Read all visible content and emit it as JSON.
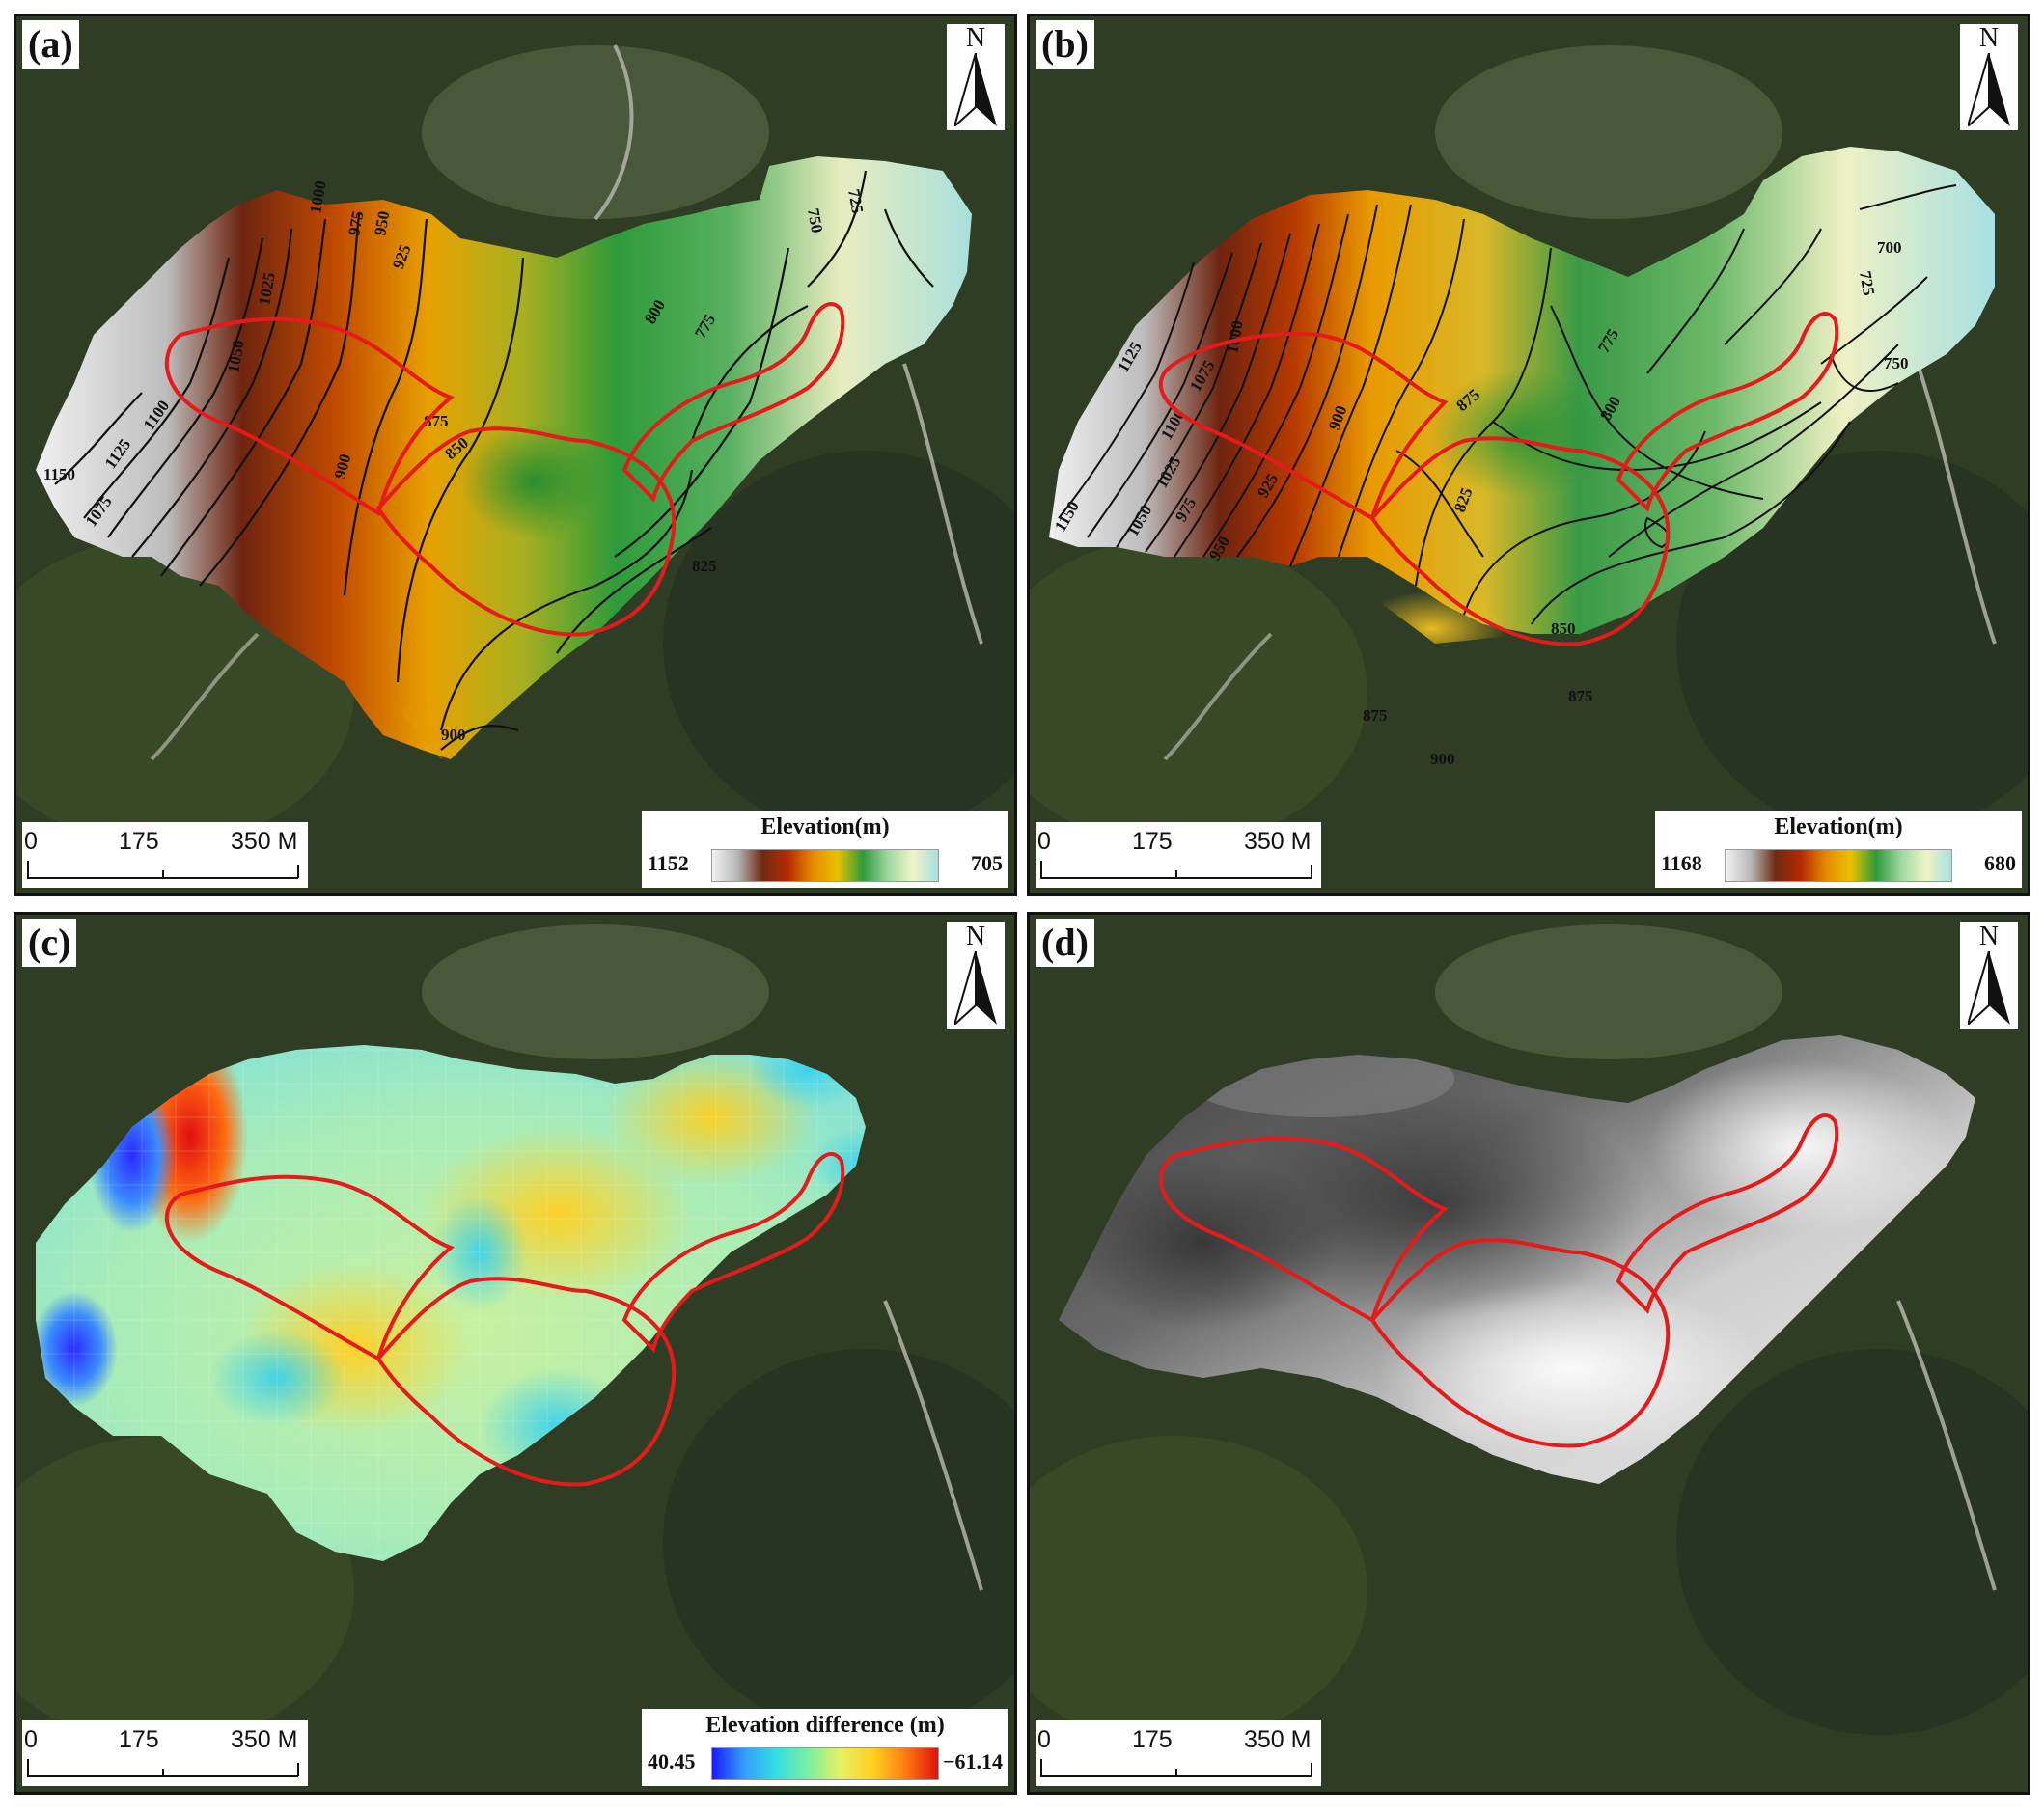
{
  "panels": [
    {
      "label": "(a)",
      "north": "N",
      "scale": {
        "ticks": [
          "0",
          "175",
          "350 M"
        ]
      },
      "legend": {
        "title": "Elevation(m)",
        "min_label": "1152",
        "max_label": "705",
        "colors": [
          "#f2f2f2",
          "#b8b8b8",
          "#6e2a12",
          "#b52a00",
          "#e58a00",
          "#e8c200",
          "#2e9a3a",
          "#9ed8a0",
          "#f0f4c8",
          "#a6e0e0"
        ]
      },
      "contours": [
        "1150",
        "1125",
        "1100",
        "1075",
        "1050",
        "1025",
        "1000",
        "975",
        "950",
        "925",
        "900",
        "875",
        "850",
        "825",
        "800",
        "775",
        "750",
        "725",
        "900"
      ],
      "surface": "elevation-coarse"
    },
    {
      "label": "(b)",
      "north": "N",
      "scale": {
        "ticks": [
          "0",
          "175",
          "350 M"
        ]
      },
      "legend": {
        "title": "Elevation(m)",
        "min_label": "1168",
        "max_label": "680",
        "colors": [
          "#f2f2f2",
          "#b8b8b8",
          "#6e2a12",
          "#b52a00",
          "#e58a00",
          "#e8c200",
          "#2e9a3a",
          "#9ed8a0",
          "#f0f4c8",
          "#a6e0e0"
        ]
      },
      "contours": [
        "1150",
        "1125",
        "1100",
        "1075",
        "1050",
        "1025",
        "1000",
        "975",
        "950",
        "925",
        "900",
        "875",
        "850",
        "825",
        "800",
        "775",
        "750",
        "725",
        "700",
        "875",
        "875",
        "900"
      ],
      "surface": "elevation-fine"
    },
    {
      "label": "(c)",
      "north": "N",
      "scale": {
        "ticks": [
          "0",
          "175",
          "350 M"
        ]
      },
      "legend": {
        "title": "Elevation difference (m)",
        "min_label": "40.45",
        "max_label": "−61.14",
        "colors": [
          "#1a1aff",
          "#33a0ff",
          "#33e0e0",
          "#7ef0a0",
          "#e8f060",
          "#ffd020",
          "#ff7a10",
          "#e01010"
        ]
      },
      "contours": [],
      "surface": "difference"
    },
    {
      "label": "(d)",
      "north": "N",
      "scale": {
        "ticks": [
          "0",
          "175",
          "350 M"
        ]
      },
      "legend": null,
      "contours": [],
      "surface": "hillshade"
    }
  ]
}
